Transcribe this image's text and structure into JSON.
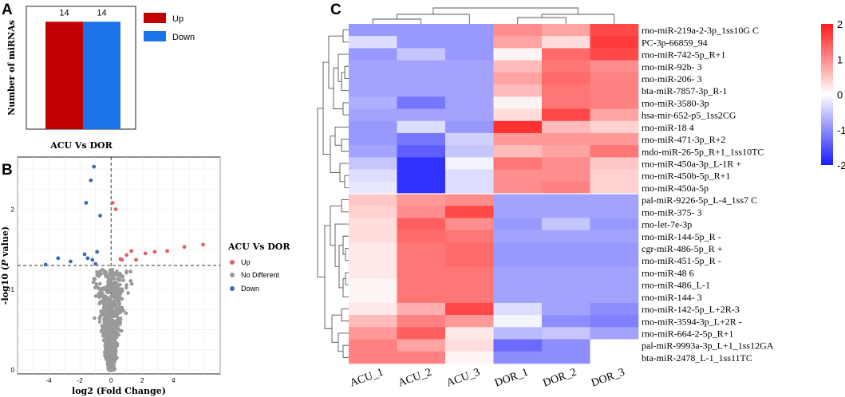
{
  "chart_data": [
    {
      "type": "bar",
      "panel_label": "A",
      "categories": [
        "ACU Vs DOR"
      ],
      "xlabel": "ACU Vs DOR",
      "ylabel": "Number of miRNAs",
      "ylim": [
        0,
        16
      ],
      "series": [
        {
          "name": "Up",
          "values": [
            14
          ],
          "color": "#c00000"
        },
        {
          "name": "Down",
          "values": [
            14
          ],
          "color": "#1a73e8"
        }
      ],
      "data_labels": [
        "14",
        "14"
      ],
      "legend_position": "top-right"
    },
    {
      "type": "scatter",
      "panel_label": "B",
      "xlabel_prefix": "log2 (Fold Change)",
      "ylabel_prefix": "-log10 (",
      "ylabel_italic": "P",
      "ylabel_suffix": " value)",
      "xlim": [
        -6,
        7
      ],
      "ylim": [
        -0.05,
        2.65
      ],
      "xticks": [
        "-4",
        "-2",
        "0",
        "2",
        "4"
      ],
      "yticks": [
        "0",
        "1",
        "2"
      ],
      "threshold_y": 1.3,
      "threshold_x": 0,
      "legend_title": "ACU Vs DOR",
      "legend": [
        {
          "label": "Up",
          "color": "#e0606a"
        },
        {
          "label": "No Different",
          "color": "#999999"
        },
        {
          "label": "Down",
          "color": "#3a6fb0"
        }
      ],
      "up_points": [
        [
          0.3,
          2.0
        ],
        [
          0.1,
          2.08
        ],
        [
          0.6,
          1.38
        ],
        [
          0.7,
          1.37
        ],
        [
          1.0,
          1.43
        ],
        [
          1.3,
          1.48
        ],
        [
          1.6,
          1.37
        ],
        [
          2.2,
          1.45
        ],
        [
          2.8,
          1.47
        ],
        [
          3.6,
          1.48
        ],
        [
          4.7,
          1.53
        ],
        [
          5.9,
          1.56
        ]
      ],
      "down_points": [
        [
          -1.1,
          2.53
        ],
        [
          -1.3,
          2.36
        ],
        [
          -1.6,
          2.08
        ],
        [
          -0.7,
          1.92
        ],
        [
          -0.9,
          1.47
        ],
        [
          -1.7,
          1.44
        ],
        [
          -4.2,
          1.31
        ],
        [
          -3.4,
          1.39
        ],
        [
          -2.6,
          1.35
        ],
        [
          -1.5,
          1.39
        ],
        [
          -1.2,
          1.37
        ],
        [
          -1.0,
          1.32
        ]
      ]
    },
    {
      "type": "heatmap",
      "panel_label": "C",
      "columns": [
        "ACU_1",
        "ACU_2",
        "ACU_3",
        "DOR_1",
        "DOR_2",
        "DOR_3"
      ],
      "rows": [
        "rno-miR-219a-2-3p_1ss10G C",
        "PC-3p-66859_94",
        "rno-miR-742-5p_R+1",
        "rno-miR-92b- 3",
        "rno-miR-206- 3",
        "bta-miR-7857-3p_R-1",
        "rno-miR-3580-3p",
        "hsa-mir-652-p5_1ss2CG",
        "rno-miR-18 4",
        "rno-miR-471-3p_R+2",
        "mdo-miR-26-5p_R+1_1ss10TC",
        "rno-miR-450a-3p_L-1R +",
        "rno-miR-450b-5p_R+1",
        "rno-miR-450a-5p",
        "pal-miR-9226-5p_L-4_1ss7 C",
        "rno-miR-375- 3",
        "rno-let-7e-3p",
        "rno-miR-144-5p_R -",
        "cgr-miR-486-5p_R +",
        "rno-miR-451-5p_R -",
        "rno-miR-48 6",
        "rno-miR-486_L-1",
        "rno-miR-144- 3",
        "rno-miR-142-5p_L+2R-3",
        "rno-miR-3594-3p_L+2R -",
        "rno-miR-664-2-5p_R+1",
        "pal-miR-9993a-3p_L+1_1ss12GA",
        "bta-miR-2478_L-1_1ss11TC"
      ],
      "values": [
        [
          -0.9,
          -0.9,
          -0.9,
          1.0,
          0.8,
          1.6
        ],
        [
          -0.3,
          -0.9,
          -0.9,
          0.8,
          0.3,
          1.7
        ],
        [
          -0.9,
          -0.5,
          -0.9,
          0.1,
          1.3,
          1.6
        ],
        [
          -0.8,
          -0.8,
          -0.8,
          0.6,
          1.2,
          1.0
        ],
        [
          -0.8,
          -0.8,
          -0.8,
          0.8,
          1.3,
          1.1
        ],
        [
          -0.8,
          -0.8,
          -0.8,
          0.6,
          1.2,
          1.1
        ],
        [
          -0.7,
          -1.2,
          -0.8,
          0.1,
          1.2,
          1.1
        ],
        [
          -0.8,
          -0.8,
          -0.8,
          0.3,
          1.6,
          0.8
        ],
        [
          -0.9,
          -0.3,
          -0.9,
          1.8,
          0.6,
          0.4
        ],
        [
          -0.9,
          -1.2,
          -0.4,
          0.9,
          0.9,
          0.9
        ],
        [
          -0.8,
          -1.4,
          -0.5,
          0.6,
          0.8,
          1.2
        ],
        [
          -0.5,
          -1.8,
          -0.1,
          1.2,
          1.0,
          0.5
        ],
        [
          -0.3,
          -1.8,
          -0.3,
          1.0,
          1.0,
          0.4
        ],
        [
          -0.2,
          -1.8,
          -0.3,
          1.0,
          1.1,
          0.4
        ],
        [
          0.5,
          0.9,
          1.0,
          -0.8,
          -0.8,
          -0.8
        ],
        [
          0.4,
          1.0,
          1.6,
          -0.8,
          -0.8,
          -0.8
        ],
        [
          0.3,
          1.4,
          1.0,
          -0.9,
          -0.5,
          -0.9
        ],
        [
          0.3,
          1.3,
          1.2,
          -0.8,
          -0.8,
          -0.8
        ],
        [
          0.2,
          1.2,
          1.3,
          -0.9,
          -0.9,
          -0.9
        ],
        [
          0.2,
          1.2,
          1.3,
          -0.9,
          -0.9,
          -0.9
        ],
        [
          0.2,
          1.2,
          1.2,
          -0.8,
          -0.8,
          -0.8
        ],
        [
          0.1,
          1.2,
          1.2,
          -0.8,
          -0.8,
          -0.8
        ],
        [
          0.1,
          1.2,
          1.2,
          -0.8,
          -0.8,
          -0.8
        ],
        [
          0.2,
          0.7,
          1.6,
          -0.3,
          -0.8,
          -1.0
        ],
        [
          0.6,
          1.1,
          0.9,
          -0.1,
          -1.0,
          -1.1
        ],
        [
          0.9,
          1.4,
          0.2,
          -0.6,
          -0.5,
          -0.8
        ],
        [
          1.1,
          0.8,
          0.3,
          -1.3,
          -1.0,
          0.0
        ],
        [
          1.1,
          1.1,
          0.1,
          -1.0,
          -1.0,
          0.0
        ]
      ],
      "colorbar": {
        "min": -2,
        "max": 2,
        "ticks": [
          "2",
          "1",
          "0",
          "-1",
          "-2"
        ],
        "low": "#1a1aff",
        "mid": "#ffffff",
        "high": "#ff1a1a"
      }
    }
  ]
}
